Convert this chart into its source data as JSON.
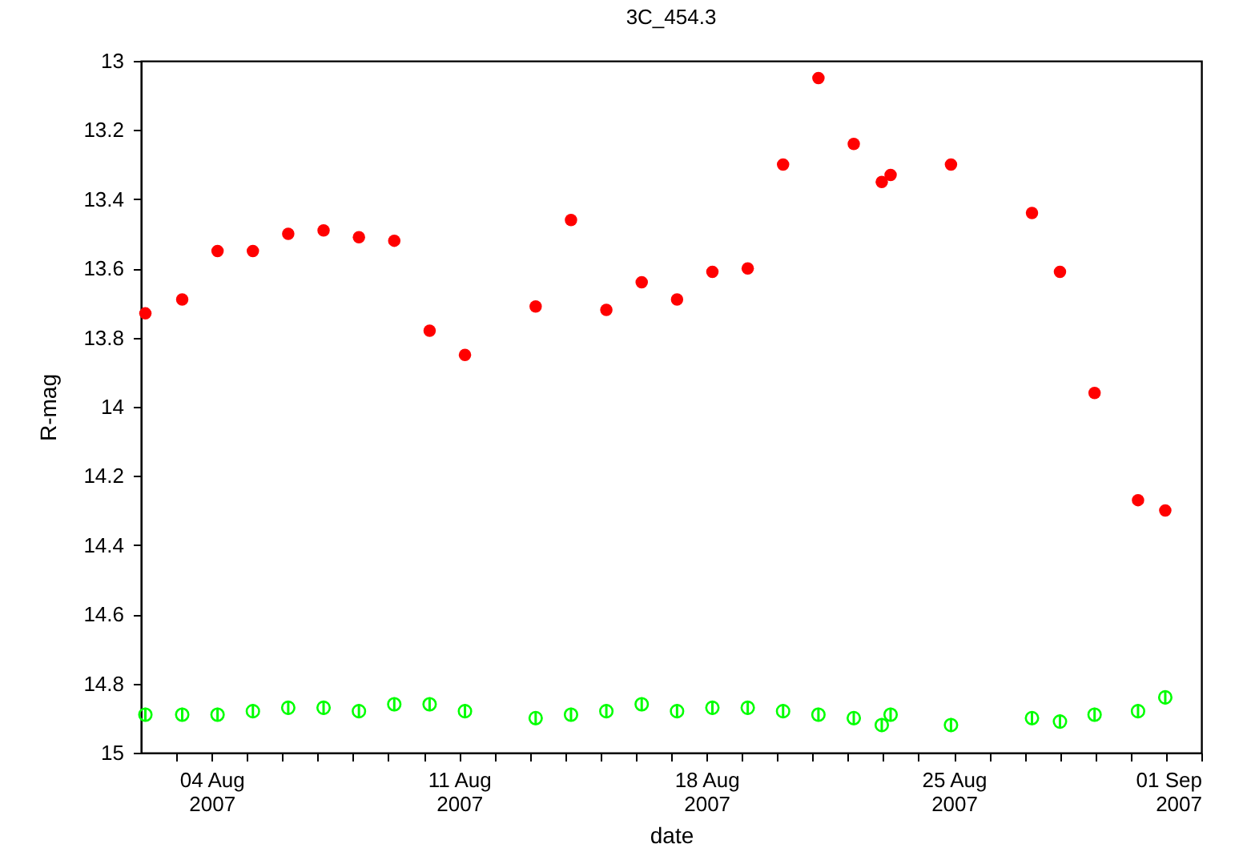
{
  "chart_data": {
    "type": "scatter",
    "title": "3C_454.3",
    "xlabel": "date",
    "ylabel": "R-mag",
    "x": [
      "2007-08-02T03:00",
      "2007-08-03T04:00",
      "2007-08-04T04:00",
      "2007-08-05T04:00",
      "2007-08-06T04:00",
      "2007-08-07T04:00",
      "2007-08-08T04:00",
      "2007-08-09T04:00",
      "2007-08-10T04:00",
      "2007-08-11T04:00",
      "2007-08-13T04:00",
      "2007-08-14T04:00",
      "2007-08-15T04:00",
      "2007-08-16T04:00",
      "2007-08-17T04:00",
      "2007-08-18T04:00",
      "2007-08-19T04:00",
      "2007-08-20T04:00",
      "2007-08-21T04:00",
      "2007-08-22T04:00",
      "2007-08-22T23:00",
      "2007-08-23T05:00",
      "2007-08-24T22:00",
      "2007-08-27T05:00",
      "2007-08-28T00:00",
      "2007-08-28T23:30",
      "2007-08-30T05:00",
      "2007-08-30T23:30"
    ],
    "series": [
      {
        "color": "#ff0000",
        "values": [
          13.73,
          13.69,
          13.55,
          13.55,
          13.5,
          13.49,
          13.51,
          13.52,
          13.78,
          13.85,
          13.71,
          13.46,
          13.72,
          13.64,
          13.69,
          13.61,
          13.6,
          13.3,
          13.05,
          13.24,
          13.35,
          13.33,
          13.3,
          13.44,
          13.61,
          13.96,
          14.27,
          14.3
        ],
        "errors": [
          0.01,
          0.01,
          0.01,
          0.01,
          0.01,
          0.01,
          0.01,
          0.01,
          0.01,
          0.01,
          0.01,
          0.01,
          0.01,
          0.01,
          0.01,
          0.01,
          0.01,
          0.01,
          0.01,
          0.01,
          0.01,
          0.01,
          0.01,
          0.01,
          0.01,
          0.01,
          0.01,
          0.01
        ]
      },
      {
        "color": "#00ff00",
        "values": [
          14.89,
          14.89,
          14.89,
          14.88,
          14.87,
          14.87,
          14.88,
          14.86,
          14.86,
          14.88,
          14.9,
          14.89,
          14.88,
          14.86,
          14.88,
          14.87,
          14.87,
          14.88,
          14.89,
          14.9,
          14.92,
          14.89,
          14.92,
          14.9,
          14.91,
          14.89,
          14.88,
          14.84
        ],
        "errors": [
          0.02,
          0.02,
          0.02,
          0.02,
          0.02,
          0.02,
          0.02,
          0.02,
          0.02,
          0.02,
          0.02,
          0.02,
          0.02,
          0.02,
          0.02,
          0.02,
          0.02,
          0.02,
          0.02,
          0.02,
          0.02,
          0.02,
          0.02,
          0.02,
          0.02,
          0.02,
          0.02,
          0.02
        ]
      }
    ],
    "xlim": [
      "2007-08-02",
      "2007-09-01"
    ],
    "xticks": [
      {
        "value": "2007-08-03",
        "label": null
      },
      {
        "value": "2007-08-04",
        "label": "04 Aug\n2007"
      },
      {
        "value": "2007-08-05",
        "label": null
      },
      {
        "value": "2007-08-06",
        "label": null
      },
      {
        "value": "2007-08-07",
        "label": null
      },
      {
        "value": "2007-08-08",
        "label": null
      },
      {
        "value": "2007-08-09",
        "label": null
      },
      {
        "value": "2007-08-10",
        "label": null
      },
      {
        "value": "2007-08-11",
        "label": "11 Aug\n2007"
      },
      {
        "value": "2007-08-12",
        "label": null
      },
      {
        "value": "2007-08-13",
        "label": null
      },
      {
        "value": "2007-08-14",
        "label": null
      },
      {
        "value": "2007-08-15",
        "label": null
      },
      {
        "value": "2007-08-16",
        "label": null
      },
      {
        "value": "2007-08-17",
        "label": null
      },
      {
        "value": "2007-08-18",
        "label": "18 Aug\n2007"
      },
      {
        "value": "2007-08-19",
        "label": null
      },
      {
        "value": "2007-08-20",
        "label": null
      },
      {
        "value": "2007-08-21",
        "label": null
      },
      {
        "value": "2007-08-22",
        "label": null
      },
      {
        "value": "2007-08-23",
        "label": null
      },
      {
        "value": "2007-08-24",
        "label": null
      },
      {
        "value": "2007-08-25",
        "label": "25 Aug\n2007"
      },
      {
        "value": "2007-08-26",
        "label": null
      },
      {
        "value": "2007-08-27",
        "label": null
      },
      {
        "value": "2007-08-28",
        "label": null
      },
      {
        "value": "2007-08-29",
        "label": null
      },
      {
        "value": "2007-08-30",
        "label": null
      },
      {
        "value": "2007-08-31",
        "label": null
      },
      {
        "value": "2007-09-01",
        "label": "01 Sep\n2007"
      }
    ],
    "ylim": [
      15,
      13
    ],
    "yticks": [
      13,
      13.2,
      13.4,
      13.6,
      13.8,
      14,
      14.2,
      14.4,
      14.6,
      14.8,
      15
    ],
    "marker": "circle",
    "grid": false
  }
}
